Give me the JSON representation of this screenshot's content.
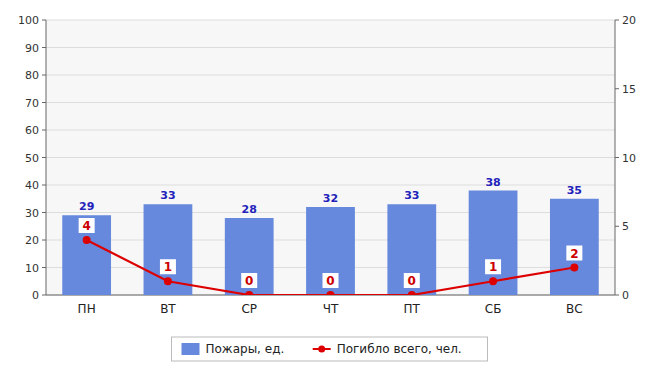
{
  "chart_data": {
    "type": "bar",
    "categories": [
      "ПН",
      "ВТ",
      "СР",
      "ЧТ",
      "ПТ",
      "СБ",
      "ВС"
    ],
    "series": [
      {
        "name": "Пожары, ед.",
        "type": "bar",
        "color": "#6688dd",
        "values": [
          29,
          33,
          28,
          32,
          33,
          38,
          35
        ]
      },
      {
        "name": "Погибло всего, чел.",
        "type": "line",
        "color": "#dd0000",
        "marker": "circle",
        "axis": "y2",
        "values": [
          4,
          1,
          0,
          0,
          0,
          1,
          2
        ]
      }
    ],
    "ylim": [
      0,
      100
    ],
    "yticks": [
      0,
      10,
      20,
      30,
      40,
      50,
      60,
      70,
      80,
      90,
      100
    ],
    "y2lim": [
      0,
      20
    ],
    "y2ticks": [
      0,
      5,
      10,
      15,
      20
    ],
    "grid": true,
    "legend": "bottom",
    "data_labels": true
  }
}
